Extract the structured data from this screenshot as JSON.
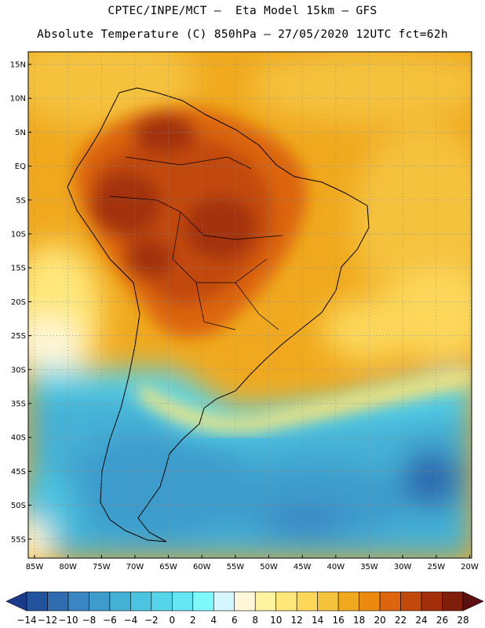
{
  "header": {
    "line1": "CPTEC/INPE/MCT –  Eta Model 15km – GFS",
    "line2": "Absolute Temperature (C) 850hPa – 27/05/2020 12UTC fct=62h"
  },
  "map": {
    "lat_labels": [
      "15N",
      "10N",
      "5N",
      "EQ",
      "5S",
      "10S",
      "15S",
      "20S",
      "25S",
      "30S",
      "35S",
      "40S",
      "45S",
      "50S",
      "55S"
    ],
    "lon_labels": [
      "85W",
      "80W",
      "75W",
      "70W",
      "65W",
      "60W",
      "55W",
      "50W",
      "45W",
      "40W",
      "35W",
      "30W",
      "25W",
      "20W"
    ],
    "grid": "dotted"
  },
  "colorbar": {
    "labels": [
      "-14",
      "-12",
      "-10",
      "-8",
      "-6",
      "-4",
      "-2",
      "0",
      "2",
      "4",
      "6",
      "8",
      "10",
      "12",
      "14",
      "16",
      "18",
      "20",
      "22",
      "24",
      "26",
      "28"
    ],
    "colors": [
      "#1b3a8c",
      "#22549e",
      "#2f6cb0",
      "#3a86c2",
      "#3e9ccc",
      "#44b1d6",
      "#4cc3e0",
      "#56d4ea",
      "#66e6f2",
      "#7ff8fc",
      "#d4f6fc",
      "#fff7d8",
      "#fff3a2",
      "#ffe77a",
      "#fcd75a",
      "#f5c23c",
      "#f0a91e",
      "#ea8a10",
      "#dc650e",
      "#c2490c",
      "#a3300a",
      "#7e1e0b",
      "#5c1010"
    ]
  }
}
